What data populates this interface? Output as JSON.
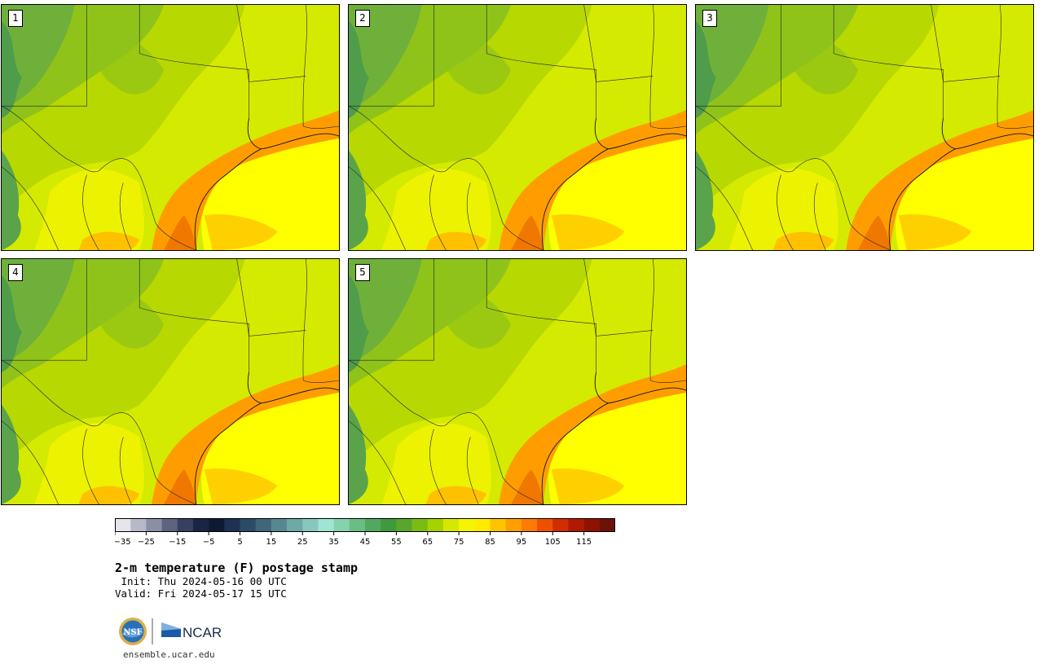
{
  "panels": [
    {
      "label": "1"
    },
    {
      "label": "2"
    },
    {
      "label": "3"
    },
    {
      "label": "4"
    },
    {
      "label": "5"
    }
  ],
  "colorbar": {
    "ticks": [
      "−35",
      "−25",
      "−15",
      "−5",
      "5",
      "15",
      "25",
      "35",
      "45",
      "55",
      "65",
      "75",
      "85",
      "95",
      "105",
      "115"
    ],
    "colors": [
      "#e4e6ec",
      "#b7b9c8",
      "#8b8fa6",
      "#5d6480",
      "#36405f",
      "#1a2544",
      "#0e1a33",
      "#1f3152",
      "#2d4a66",
      "#3f6679",
      "#58888f",
      "#6ea9a6",
      "#87c7bc",
      "#9ee6d3",
      "#84d2ae",
      "#6bbd86",
      "#53a860",
      "#3f9a3c",
      "#58a72b",
      "#7bbc12",
      "#a6d200",
      "#d6e800",
      "#f5f500",
      "#ffea00",
      "#ffc400",
      "#ffa000",
      "#ff7a00",
      "#ef5000",
      "#d22d00",
      "#b01a00",
      "#8e1400",
      "#6d1208"
    ]
  },
  "title": "2-m temperature (F) postage stamp",
  "init": " Init: Thu 2024-05-16 00 UTC",
  "valid": "Valid: Fri 2024-05-17 15 UTC",
  "logo": {
    "nsf": "NSF",
    "ncar": "NCAR"
  },
  "site": "ensemble.ucar.edu"
}
